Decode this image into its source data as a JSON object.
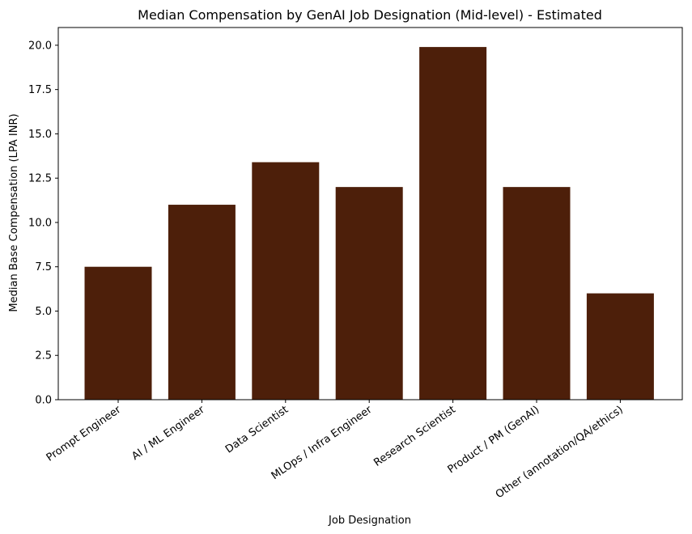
{
  "chart_data": {
    "type": "bar",
    "title": "Median Compensation by GenAI Job Designation (Mid-level) - Estimated",
    "xlabel": "Job Designation",
    "ylabel": "Median Base Compensation (LPA INR)",
    "categories": [
      "Prompt Engineer",
      "AI / ML Engineer",
      "Data Scientist",
      "MLOps / Infra Engineer",
      "Research Scientist",
      "Product / PM (GenAI)",
      "Other (annotation/QA/ethics)"
    ],
    "values": [
      7.5,
      11.0,
      13.4,
      12.0,
      19.9,
      12.0,
      6.0
    ],
    "ylim": [
      0,
      21
    ],
    "yticks": [
      "0.0",
      "2.5",
      "5.0",
      "7.5",
      "10.0",
      "12.5",
      "15.0",
      "17.5",
      "20.0"
    ],
    "grid": false,
    "bar_color": "#4d1f0a"
  }
}
